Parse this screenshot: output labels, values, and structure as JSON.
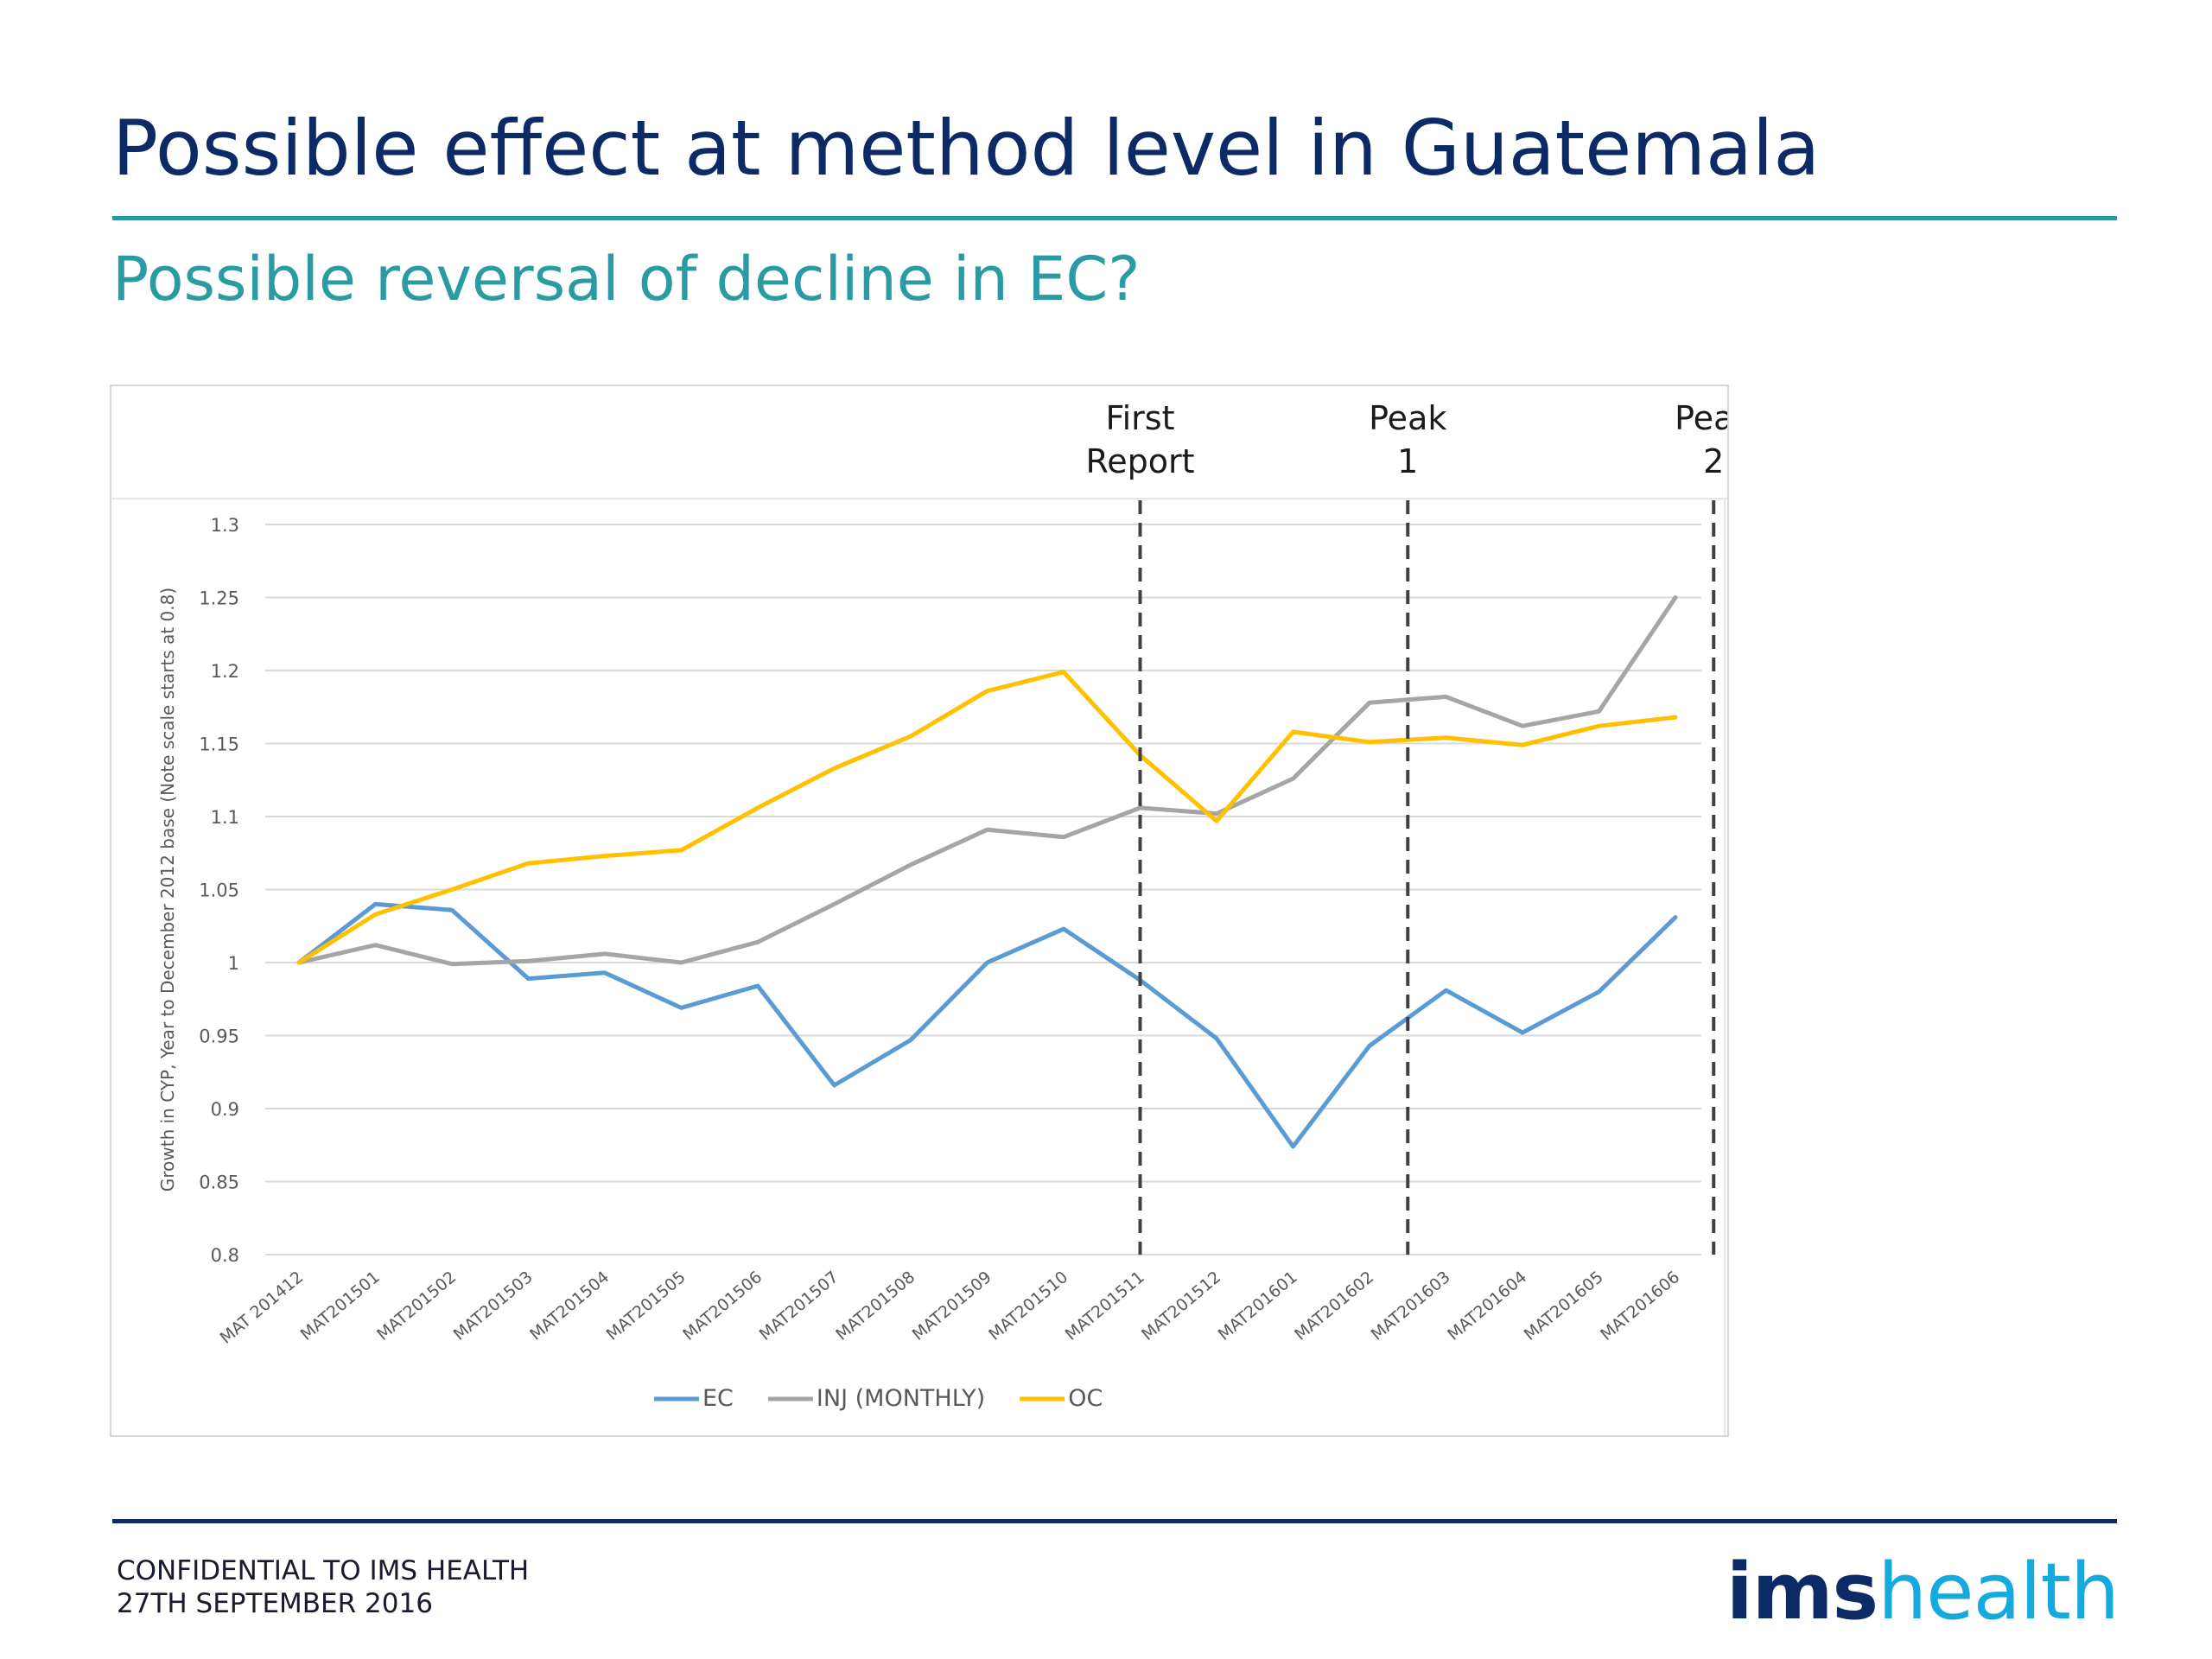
{
  "slide": {
    "title": "Possible effect at method level in Guatemala",
    "subtitle": "Possible reversal of decline in EC?",
    "footer_line1": "CONFIDENTIAL TO IMS HEALTH",
    "footer_line2": "27TH SEPTEMBER 2016",
    "logo_ims": "ims",
    "logo_health": "health",
    "colors": {
      "title": "#0b2a66",
      "subtitle": "#2a9aa3",
      "rule": "#2a97a3"
    }
  },
  "chart_data": {
    "type": "line",
    "title": "",
    "ylabel": "Growth in CYP, Year to December 2012 base (Note scale starts at 0.8)",
    "xlabel": "",
    "ylim": [
      0.8,
      1.3
    ],
    "yticks": [
      "0.8",
      "0.85",
      "0.9",
      "0.95",
      "1",
      "1.05",
      "1.1",
      "1.15",
      "1.2",
      "1.25",
      "1.3"
    ],
    "grid": true,
    "legend_position": "bottom",
    "categories": [
      "MAT 201412",
      "MAT201501",
      "MAT201502",
      "MAT201503",
      "MAT201504",
      "MAT201505",
      "MAT201506",
      "MAT201507",
      "MAT201508",
      "MAT201509",
      "MAT201510",
      "MAT201511",
      "MAT201512",
      "MAT201601",
      "MAT201602",
      "MAT201603",
      "MAT201604",
      "MAT201605",
      "MAT201606"
    ],
    "series": [
      {
        "name": "EC",
        "color": "#5b9bd5",
        "values": [
          1.0,
          1.04,
          1.036,
          0.989,
          0.993,
          0.969,
          0.984,
          0.916,
          0.947,
          1.0,
          1.023,
          0.988,
          0.948,
          0.874,
          0.943,
          0.981,
          0.952,
          0.98,
          1.031
        ]
      },
      {
        "name": "INJ (MONTHLY)",
        "color": "#a5a5a5",
        "values": [
          1.0,
          1.012,
          0.999,
          1.001,
          1.006,
          1.0,
          1.014,
          1.04,
          1.067,
          1.091,
          1.086,
          1.106,
          1.102,
          1.126,
          1.178,
          1.182,
          1.162,
          1.172,
          1.25
        ]
      },
      {
        "name": "OC",
        "color": "#ffc000",
        "values": [
          1.0,
          1.033,
          1.05,
          1.068,
          1.073,
          1.077,
          1.106,
          1.133,
          1.155,
          1.186,
          1.199,
          1.142,
          1.097,
          1.158,
          1.151,
          1.154,
          1.149,
          1.162,
          1.168
        ]
      }
    ],
    "annotations": [
      {
        "line1": "First",
        "line2": "Report",
        "x": 11
      },
      {
        "line1": "Peak",
        "line2": "1",
        "x": 14.5
      },
      {
        "line1": "Peak",
        "line2": "2",
        "x": 18.5
      }
    ]
  }
}
